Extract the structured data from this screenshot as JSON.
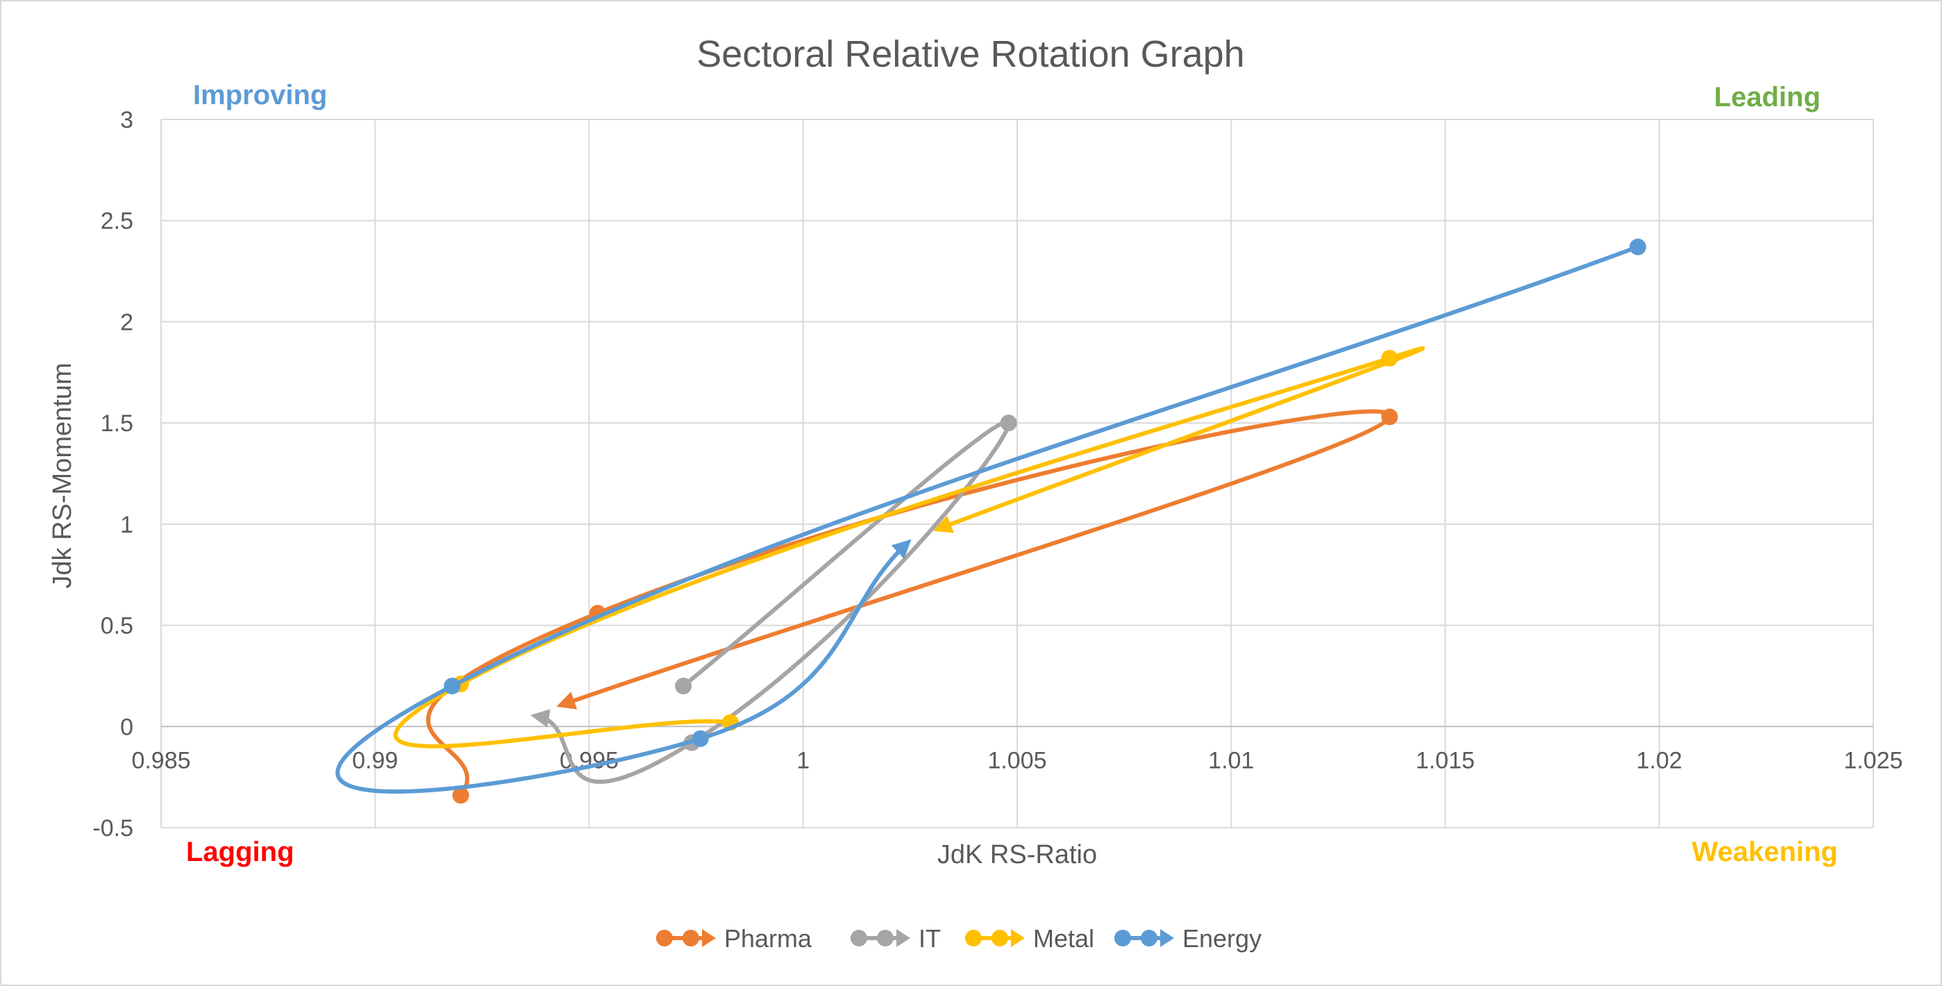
{
  "chart_data": {
    "type": "line",
    "title": "Sectoral Relative Rotation Graph",
    "xlabel": "JdK RS-Ratio",
    "ylabel": "Jdk RS-Momentum",
    "xlim": [
      0.985,
      1.025
    ],
    "ylim": [
      -0.5,
      3
    ],
    "x_ticks": [
      "0.985",
      "0.99",
      "0.995",
      "1",
      "1.005",
      "1.01",
      "1.015",
      "1.02",
      "1.025"
    ],
    "y_ticks": [
      "-0.5",
      "0",
      "0.5",
      "1",
      "1.5",
      "2",
      "2.5",
      "3"
    ],
    "grid": true,
    "legend_position": "bottom",
    "quadrants": {
      "improving": {
        "label": "Improving",
        "color": "#5B9BD5"
      },
      "leading": {
        "label": "Leading",
        "color": "#70AD47"
      },
      "lagging": {
        "label": "Lagging",
        "color": "#FF0000"
      },
      "weakening": {
        "label": "Weakening",
        "color": "#FFC000"
      }
    },
    "series": [
      {
        "name": "Pharma",
        "color": "#ED7D31",
        "points": [
          [
            0.992,
            -0.34
          ],
          [
            0.9952,
            0.56
          ],
          [
            1.0137,
            1.53
          ],
          [
            0.9944,
            0.11
          ]
        ]
      },
      {
        "name": "IT",
        "color": "#A5A5A5",
        "points": [
          [
            0.9972,
            0.2
          ],
          [
            1.0048,
            1.5
          ],
          [
            0.9974,
            -0.08
          ],
          [
            0.9938,
            0.05
          ]
        ]
      },
      {
        "name": "Metal",
        "color": "#FFC000",
        "points": [
          [
            0.9983,
            0.02
          ],
          [
            0.992,
            0.21
          ],
          [
            1.0137,
            1.82
          ],
          [
            1.0032,
            0.98
          ]
        ]
      },
      {
        "name": "Energy",
        "color": "#5B9BD5",
        "points": [
          [
            1.0195,
            2.37
          ],
          [
            0.9918,
            0.2
          ],
          [
            0.9976,
            -0.06
          ],
          [
            1.0024,
            0.9
          ]
        ]
      }
    ]
  }
}
